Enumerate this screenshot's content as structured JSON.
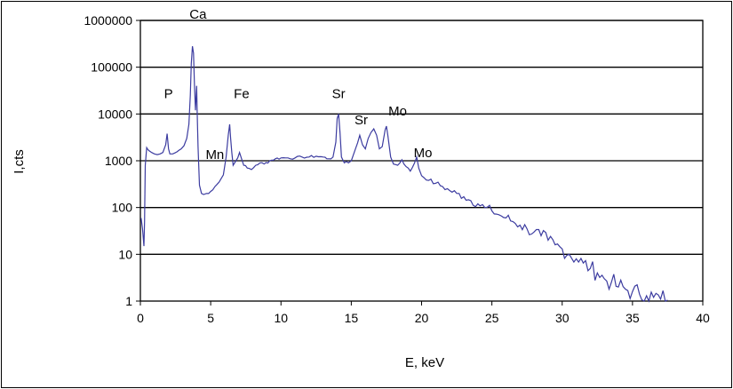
{
  "chart_data": {
    "type": "line",
    "xlabel": "E, keV",
    "ylabel": "I,cts",
    "xlim": [
      0,
      40
    ],
    "ylim": [
      1,
      1000000
    ],
    "yscale": "log",
    "grid": "horizontal",
    "legend": "none",
    "line_color": "#3c3ca0",
    "x_ticks": [
      "0",
      "5",
      "10",
      "15",
      "20",
      "25",
      "30",
      "35",
      "40"
    ],
    "y_ticks": [
      "1",
      "10",
      "100",
      "1000",
      "10000",
      "100000",
      "1000000"
    ],
    "annotations": [
      {
        "text": "P",
        "x": 2.0,
        "y": 20000
      },
      {
        "text": "Ca",
        "x": 4.1,
        "y": 1000000
      },
      {
        "text": "Fe",
        "x": 7.2,
        "y": 20000
      },
      {
        "text": "Mn",
        "x": 5.3,
        "y": 1000
      },
      {
        "text": "Sr",
        "x": 14.1,
        "y": 20000
      },
      {
        "text": "Sr",
        "x": 15.7,
        "y": 5500
      },
      {
        "text": "Mo",
        "x": 18.3,
        "y": 8500
      },
      {
        "text": "Mo",
        "x": 20.1,
        "y": 1100
      }
    ],
    "series": [
      {
        "x": [
          0.05,
          0.15,
          0.25,
          0.3,
          0.35,
          0.45,
          0.5,
          0.6,
          0.8,
          1.0,
          1.2,
          1.4,
          1.6,
          1.8,
          1.9,
          2.0,
          2.1,
          2.3,
          2.6,
          2.9,
          3.1,
          3.3,
          3.45,
          3.55,
          3.62,
          3.7,
          3.78,
          3.85,
          3.92,
          4.0,
          4.05,
          4.1,
          4.2,
          4.35,
          4.5,
          4.7,
          5.0,
          5.3,
          5.6,
          5.9,
          6.1,
          6.25,
          6.35,
          6.42,
          6.5,
          6.6,
          6.8,
          7.05,
          7.2,
          7.35,
          7.6,
          7.9,
          8.2,
          8.5,
          8.8,
          9.2,
          9.6,
          10.0,
          10.5,
          11.0,
          11.5,
          12.0,
          12.5,
          13.0,
          13.4,
          13.7,
          13.9,
          14.0,
          14.1,
          14.2,
          14.3,
          14.5,
          14.8,
          15.0,
          15.3,
          15.6,
          15.8,
          16.0,
          16.2,
          16.4,
          16.6,
          16.8,
          17.0,
          17.2,
          17.4,
          17.5,
          17.6,
          17.8,
          18.0,
          18.3,
          18.6,
          18.9,
          19.2,
          19.5,
          19.65,
          19.8,
          20.0,
          20.5,
          21.0,
          21.5,
          22.0,
          22.5,
          23.0,
          23.5,
          24.0,
          24.5,
          25.0,
          25.5,
          26.0,
          26.5,
          27.0,
          27.5,
          28.0,
          28.5,
          29.0,
          29.5,
          30.0,
          30.5,
          31.0,
          31.5,
          32.0,
          32.5,
          33.0,
          33.5,
          34.0,
          34.5,
          35.0,
          35.5,
          36.0,
          36.5,
          37.0,
          37.5
        ],
        "y": [
          60,
          35,
          15,
          50,
          800,
          1900,
          1800,
          1650,
          1500,
          1400,
          1350,
          1400,
          1500,
          2200,
          3800,
          1800,
          1400,
          1400,
          1550,
          1800,
          2100,
          3000,
          6000,
          25000,
          120000,
          280000,
          200000,
          40000,
          12000,
          40000,
          8000,
          2000,
          300,
          200,
          190,
          200,
          220,
          280,
          350,
          500,
          1200,
          3500,
          6000,
          3000,
          1500,
          800,
          1000,
          1500,
          1100,
          800,
          700,
          650,
          800,
          900,
          850,
          1000,
          1100,
          1150,
          1150,
          1150,
          1200,
          1200,
          1250,
          1200,
          1100,
          1200,
          2500,
          8000,
          10000,
          4000,
          1200,
          900,
          900,
          1000,
          1800,
          3500,
          2200,
          1800,
          3000,
          4000,
          4800,
          3500,
          1800,
          2000,
          4500,
          5500,
          3500,
          1200,
          850,
          800,
          1050,
          750,
          600,
          900,
          1200,
          700,
          480,
          380,
          330,
          280,
          230,
          200,
          170,
          140,
          120,
          100,
          85,
          70,
          60,
          50,
          42,
          35,
          30,
          25,
          20,
          16,
          13,
          10,
          8,
          6.5,
          5,
          4,
          3,
          2.5,
          2,
          1.8,
          1.6,
          1.4,
          1.3,
          1.2,
          1.1,
          1.05
        ]
      }
    ]
  }
}
